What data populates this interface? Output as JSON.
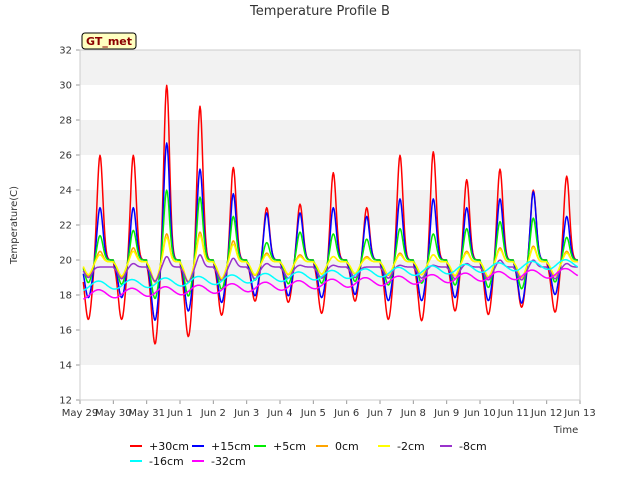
{
  "chart_data": {
    "type": "line",
    "title": "Temperature Profile B",
    "xlabel": "Time",
    "ylabel": "Temperature(C)",
    "badge": "GT_met",
    "ylim": [
      12,
      32
    ],
    "yticks": [
      12,
      14,
      16,
      18,
      20,
      22,
      24,
      26,
      28,
      30,
      32
    ],
    "xlim": [
      0,
      15
    ],
    "xtick_labels": [
      "May 29",
      "May 30",
      "May 31",
      "Jun 1",
      "Jun 2",
      "Jun 3",
      "Jun 4",
      "Jun 5",
      "Jun 6",
      "Jun 7",
      "Jun 8",
      "Jun 9",
      "Jun 10",
      "Jun 11",
      "Jun 12",
      "Jun 13"
    ],
    "grid": "horizontal bands",
    "legend_position": "bottom",
    "day_peaks": [
      {
        "day": "May 29",
        "amp30": 6.0,
        "amp15": 3.0,
        "amp5": 1.4,
        "amp0": 0.6,
        "ampm2": 0.4,
        "ampm8": 0.0
      },
      {
        "day": "May 30",
        "amp30": 6.0,
        "amp15": 3.0,
        "amp5": 1.7,
        "amp0": 0.8,
        "ampm2": 0.6,
        "ampm8": 0.2
      },
      {
        "day": "May 31",
        "amp30": 10.0,
        "amp15": 6.7,
        "amp5": 4.0,
        "amp0": 1.6,
        "ampm2": 1.4,
        "ampm8": 0.6
      },
      {
        "day": "Jun 1",
        "amp30": 8.8,
        "amp15": 5.2,
        "amp5": 3.6,
        "amp0": 1.7,
        "ampm2": 1.5,
        "ampm8": 0.7
      },
      {
        "day": "Jun 2",
        "amp30": 5.3,
        "amp15": 3.8,
        "amp5": 2.5,
        "amp0": 1.2,
        "ampm2": 1.0,
        "ampm8": 0.5
      },
      {
        "day": "Jun 3",
        "amp30": 3.0,
        "amp15": 2.7,
        "amp5": 1.0,
        "amp0": 0.5,
        "ampm2": 0.4,
        "ampm8": 0.2
      },
      {
        "day": "Jun 4",
        "amp30": 3.2,
        "amp15": 2.7,
        "amp5": 1.6,
        "amp0": 0.4,
        "ampm2": 0.3,
        "ampm8": 0.1
      },
      {
        "day": "Jun 5",
        "amp30": 5.0,
        "amp15": 3.0,
        "amp5": 1.5,
        "amp0": 0.3,
        "ampm2": 0.3,
        "ampm8": 0.1
      },
      {
        "day": "Jun 6",
        "amp30": 3.0,
        "amp15": 2.5,
        "amp5": 1.2,
        "amp0": 0.3,
        "ampm2": 0.2,
        "ampm8": 0.0
      },
      {
        "day": "Jun 7",
        "amp30": 6.0,
        "amp15": 3.5,
        "amp5": 1.8,
        "amp0": 0.5,
        "ampm2": 0.4,
        "ampm8": 0.1
      },
      {
        "day": "Jun 8",
        "amp30": 6.2,
        "amp15": 3.5,
        "amp5": 1.5,
        "amp0": 0.4,
        "ampm2": 0.4,
        "ampm8": 0.1
      },
      {
        "day": "Jun 9",
        "amp30": 4.6,
        "amp15": 3.0,
        "amp5": 1.8,
        "amp0": 0.6,
        "ampm2": 0.5,
        "ampm8": 0.2
      },
      {
        "day": "Jun 10",
        "amp30": 5.2,
        "amp15": 3.5,
        "amp5": 2.2,
        "amp0": 0.8,
        "ampm2": 0.7,
        "ampm8": 0.4
      },
      {
        "day": "Jun 11",
        "amp30": 4.0,
        "amp15": 3.9,
        "amp5": 2.4,
        "amp0": 0.9,
        "ampm2": 0.8,
        "ampm8": 0.4
      },
      {
        "day": "Jun 12",
        "amp30": 4.8,
        "amp15": 2.5,
        "amp5": 1.3,
        "amp0": 0.6,
        "ampm2": 0.5,
        "ampm8": 0.2
      }
    ],
    "series": [
      {
        "name": "+30cm",
        "color": "#ff0000",
        "base": 20.0,
        "amp_key": "amp30",
        "trough": 1.3
      },
      {
        "name": "+15cm",
        "color": "#0000ff",
        "base": 20.0,
        "amp_key": "amp15",
        "trough": 1.1
      },
      {
        "name": "+5cm",
        "color": "#00ee00",
        "base": 20.0,
        "amp_key": "amp5",
        "trough": 0.8
      },
      {
        "name": "0cm",
        "color": "#ffa500",
        "base": 19.9,
        "amp_key": "amp0",
        "trough": 0.6
      },
      {
        "name": "-2cm",
        "color": "#ffff00",
        "base": 19.9,
        "amp_key": "ampm2",
        "trough": 0.6
      },
      {
        "name": "-8cm",
        "color": "#9932cc",
        "base": 19.6,
        "amp_key": "ampm8",
        "trough": 0.6
      },
      {
        "name": "-16cm",
        "color": "#00ffff",
        "start": 18.5,
        "end": 19.8,
        "smooth": true
      },
      {
        "name": "-32cm",
        "color": "#ff00ff",
        "start": 18.0,
        "end": 19.3,
        "smooth": true
      }
    ]
  }
}
